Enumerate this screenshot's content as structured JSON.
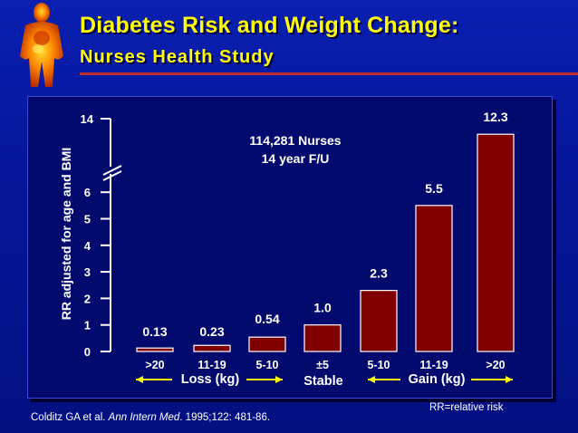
{
  "header": {
    "title": "Diabetes Risk and Weight Change:",
    "subtitle": "Nurses Health Study"
  },
  "footer": {
    "citation_prefix": "Colditz GA et al. ",
    "citation_journal": "Ann Intern Med",
    "citation_suffix": ". 1995;122: 481-86.",
    "note": "RR=relative risk"
  },
  "colors": {
    "bar": "#800000",
    "background": "#021080",
    "text": "#ffffff",
    "title": "#ffff00",
    "arrow": "#ffff00"
  },
  "chart_data": {
    "type": "bar",
    "title": "",
    "ylabel": "RR adjusted for age and BMI",
    "y_ticks_lower": [
      0,
      1,
      2,
      3,
      4,
      5,
      6
    ],
    "y_tick_upper": 14,
    "axis_break": true,
    "categories": [
      ">20",
      "11-19",
      "5-10",
      "±5",
      "5-10",
      "11-19",
      ">20"
    ],
    "values": [
      0.13,
      0.23,
      0.54,
      1.0,
      2.3,
      5.5,
      12.3
    ],
    "value_labels": [
      "0.13",
      "0.23",
      "0.54",
      "1.0",
      "2.3",
      "5.5",
      "12.3"
    ],
    "group_labels": [
      {
        "label": "Loss (kg)",
        "categories": [
          0,
          1,
          2
        ]
      },
      {
        "label": "Stable",
        "categories": [
          3
        ]
      },
      {
        "label": "Gain (kg)",
        "categories": [
          4,
          5,
          6
        ]
      }
    ],
    "annotation_lines": [
      "114,281 Nurses",
      "14 year F/U"
    ],
    "grid": false
  }
}
